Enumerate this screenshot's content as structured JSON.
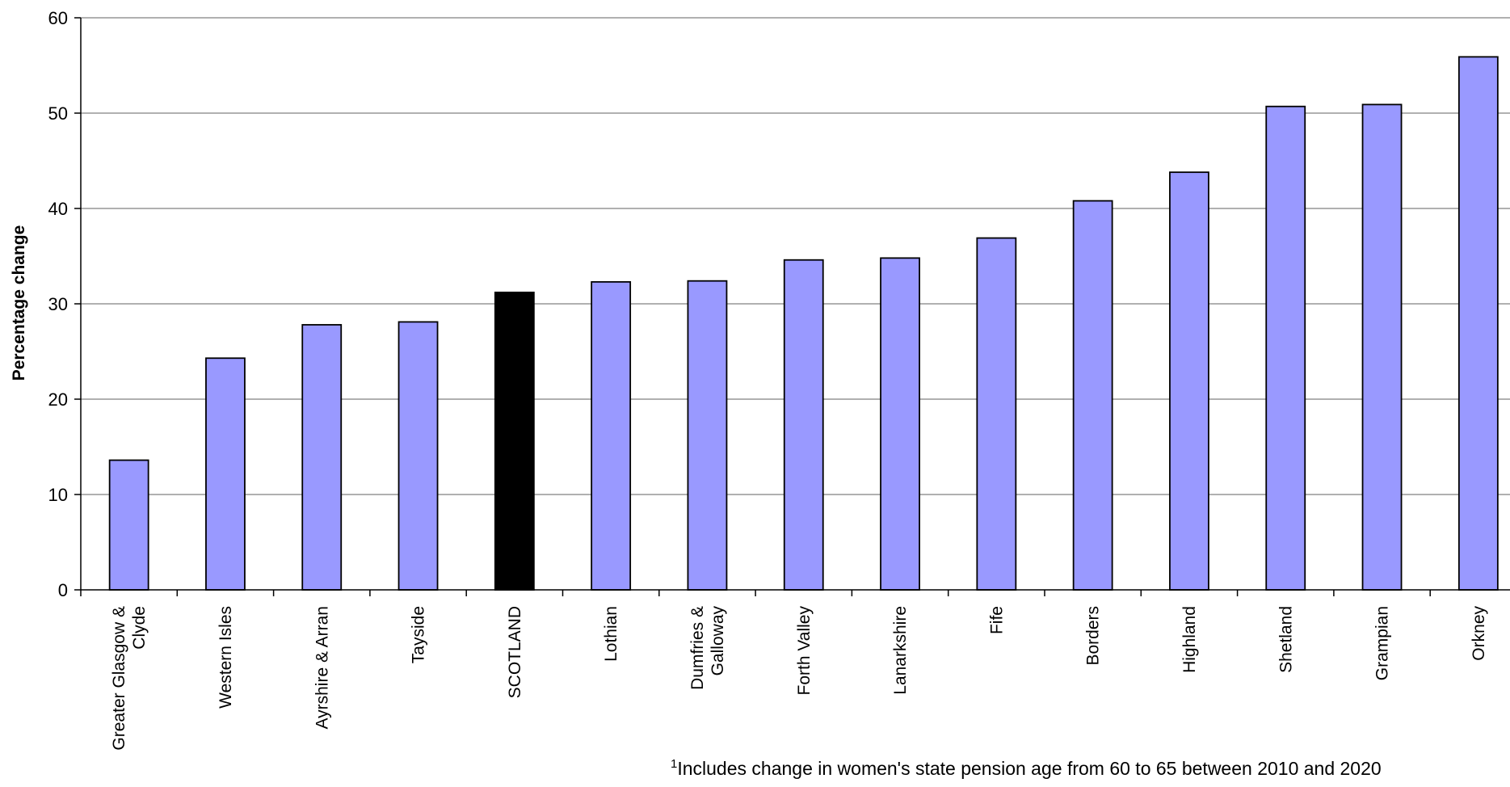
{
  "chart_data": {
    "type": "bar",
    "categories": [
      [
        "Greater Glasgow &",
        "Clyde"
      ],
      [
        "Western Isles"
      ],
      [
        "Ayrshire & Arran"
      ],
      [
        "Tayside"
      ],
      [
        "SCOTLAND"
      ],
      [
        "Lothian"
      ],
      [
        "Dumfries &",
        "Galloway"
      ],
      [
        "Forth Valley"
      ],
      [
        "Lanarkshire"
      ],
      [
        "Fife"
      ],
      [
        "Borders"
      ],
      [
        "Highland"
      ],
      [
        "Shetland"
      ],
      [
        "Grampian"
      ],
      [
        "Orkney"
      ]
    ],
    "values": [
      13.6,
      24.3,
      27.8,
      28.1,
      31.2,
      32.3,
      32.4,
      34.6,
      34.8,
      36.9,
      40.8,
      43.8,
      50.7,
      50.9,
      55.9
    ],
    "highlight_index": 4,
    "ylabel": "Percentage change",
    "ylim": [
      0,
      60
    ],
    "yticks": [
      0,
      10,
      20,
      30,
      40,
      50,
      60
    ],
    "grid": true,
    "colors": {
      "bar": "#9999ff",
      "highlight": "#000000",
      "gridline": "#808080"
    }
  },
  "footnote": {
    "marker": "1",
    "text": "Includes change in women's state pension age from 60 to 65 between 2010 and 2020"
  }
}
